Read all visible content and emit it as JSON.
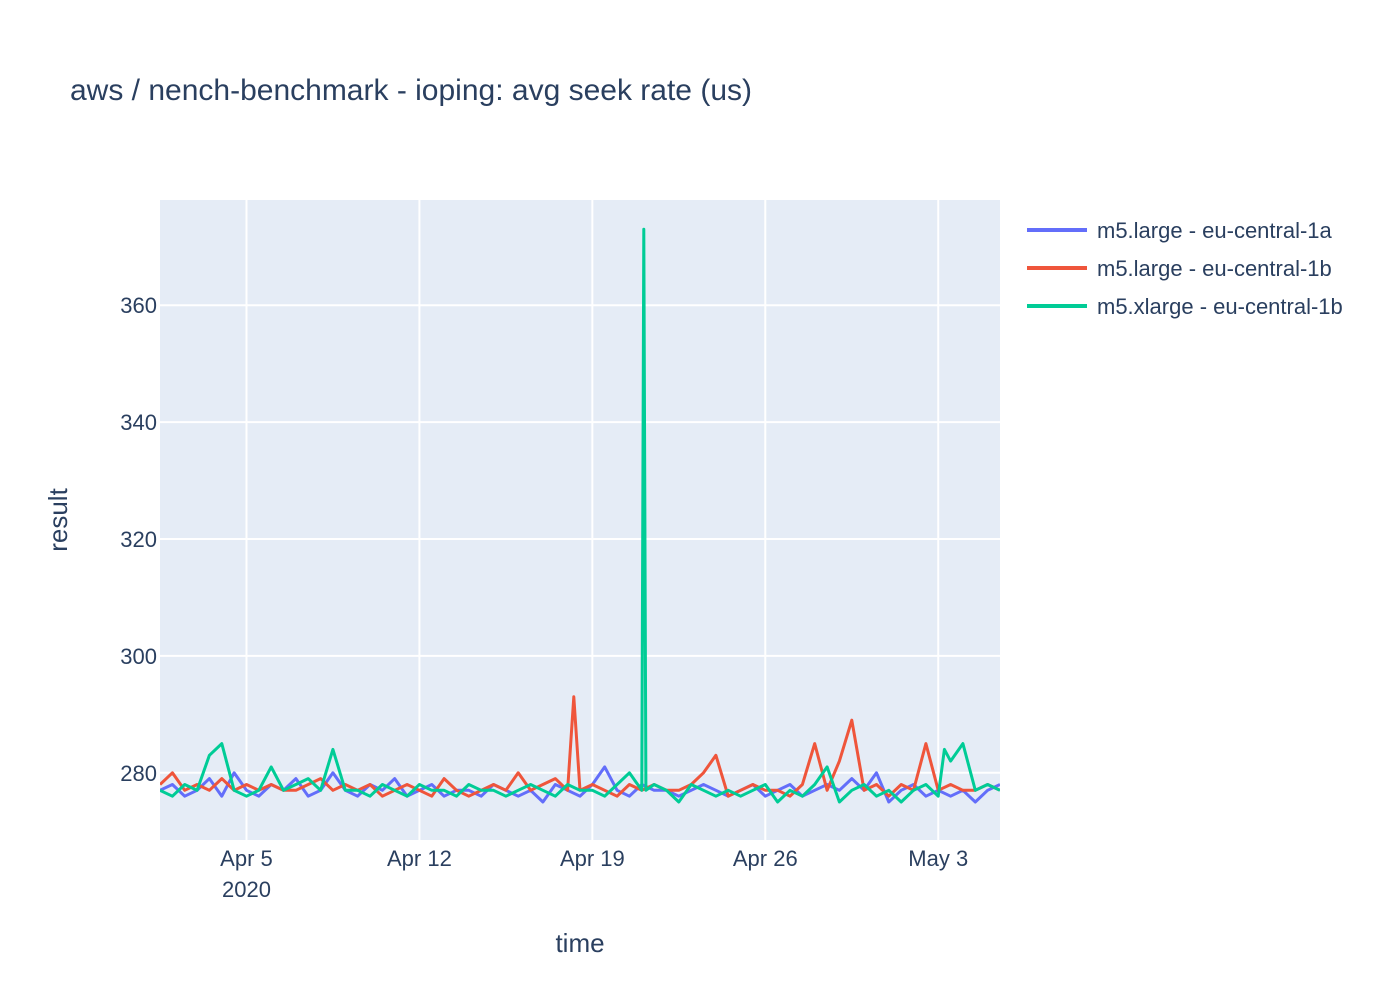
{
  "chart_data": {
    "type": "line",
    "title": "aws / nench-benchmark - ioping: avg seek rate (us)",
    "xlabel": "time",
    "ylabel": "result",
    "x_range": [
      "2020-04-01T12:00",
      "2020-05-05T12:00"
    ],
    "ylim": [
      268.5,
      378
    ],
    "y_ticks": [
      280,
      300,
      320,
      340,
      360
    ],
    "x_ticks": [
      {
        "date": "2020-04-05",
        "label": "Apr 5",
        "sublabel": "2020"
      },
      {
        "date": "2020-04-12",
        "label": "Apr 12",
        "sublabel": ""
      },
      {
        "date": "2020-04-19",
        "label": "Apr 19",
        "sublabel": ""
      },
      {
        "date": "2020-04-26",
        "label": "Apr 26",
        "sublabel": ""
      },
      {
        "date": "2020-05-03",
        "label": "May 3",
        "sublabel": ""
      }
    ],
    "grid": true,
    "legend_position": "top-right",
    "series": [
      {
        "name": "m5.large - eu-central-1a",
        "color": "#636efa",
        "x": [
          "2020-04-01T12:00",
          "2020-04-02T00:00",
          "2020-04-02T12:00",
          "2020-04-03T00:00",
          "2020-04-03T12:00",
          "2020-04-04T00:00",
          "2020-04-04T12:00",
          "2020-04-05T00:00",
          "2020-04-05T12:00",
          "2020-04-06T00:00",
          "2020-04-06T12:00",
          "2020-04-07T00:00",
          "2020-04-07T12:00",
          "2020-04-08T00:00",
          "2020-04-08T12:00",
          "2020-04-09T00:00",
          "2020-04-09T12:00",
          "2020-04-10T00:00",
          "2020-04-10T12:00",
          "2020-04-11T00:00",
          "2020-04-11T12:00",
          "2020-04-12T00:00",
          "2020-04-12T12:00",
          "2020-04-13T00:00",
          "2020-04-13T12:00",
          "2020-04-14T00:00",
          "2020-04-14T12:00",
          "2020-04-15T00:00",
          "2020-04-15T12:00",
          "2020-04-16T00:00",
          "2020-04-16T12:00",
          "2020-04-17T00:00",
          "2020-04-17T12:00",
          "2020-04-18T00:00",
          "2020-04-18T12:00",
          "2020-04-19T00:00",
          "2020-04-19T12:00",
          "2020-04-20T00:00",
          "2020-04-20T12:00",
          "2020-04-21T00:00",
          "2020-04-21T12:00",
          "2020-04-22T00:00",
          "2020-04-22T12:00",
          "2020-04-23T00:00",
          "2020-04-23T12:00",
          "2020-04-24T00:00",
          "2020-04-24T12:00",
          "2020-04-25T00:00",
          "2020-04-25T12:00",
          "2020-04-26T00:00",
          "2020-04-26T12:00",
          "2020-04-27T00:00",
          "2020-04-27T12:00",
          "2020-04-28T00:00",
          "2020-04-28T12:00",
          "2020-04-29T00:00",
          "2020-04-29T12:00",
          "2020-04-30T00:00",
          "2020-04-30T12:00",
          "2020-05-01T00:00",
          "2020-05-01T12:00",
          "2020-05-02T00:00",
          "2020-05-02T12:00",
          "2020-05-03T00:00",
          "2020-05-03T12:00",
          "2020-05-04T00:00",
          "2020-05-04T12:00",
          "2020-05-05T00:00",
          "2020-05-05T12:00"
        ],
        "values": [
          277,
          278,
          276,
          277,
          279,
          276,
          280,
          277,
          276,
          278,
          277,
          279,
          276,
          277,
          280,
          277,
          276,
          278,
          277,
          279,
          276,
          277,
          278,
          276,
          277,
          277,
          276,
          278,
          277,
          276,
          277,
          275,
          278,
          277,
          276,
          278,
          281,
          277,
          276,
          278,
          277,
          277,
          276,
          277,
          278,
          277,
          276,
          277,
          278,
          276,
          277,
          278,
          276,
          277,
          278,
          277,
          279,
          277,
          280,
          275,
          277,
          278,
          276,
          277,
          276,
          277,
          275,
          277,
          278
        ]
      },
      {
        "name": "m5.large - eu-central-1b",
        "color": "#ef553b",
        "x": [
          "2020-04-01T12:00",
          "2020-04-02T00:00",
          "2020-04-02T12:00",
          "2020-04-03T00:00",
          "2020-04-03T12:00",
          "2020-04-04T00:00",
          "2020-04-04T12:00",
          "2020-04-05T00:00",
          "2020-04-05T12:00",
          "2020-04-06T00:00",
          "2020-04-06T12:00",
          "2020-04-07T00:00",
          "2020-04-07T12:00",
          "2020-04-08T00:00",
          "2020-04-08T12:00",
          "2020-04-09T00:00",
          "2020-04-09T12:00",
          "2020-04-10T00:00",
          "2020-04-10T12:00",
          "2020-04-11T00:00",
          "2020-04-11T12:00",
          "2020-04-12T00:00",
          "2020-04-12T12:00",
          "2020-04-13T00:00",
          "2020-04-13T12:00",
          "2020-04-14T00:00",
          "2020-04-14T12:00",
          "2020-04-15T00:00",
          "2020-04-15T12:00",
          "2020-04-16T00:00",
          "2020-04-16T12:00",
          "2020-04-17T00:00",
          "2020-04-17T12:00",
          "2020-04-18T00:00",
          "2020-04-18T06:00",
          "2020-04-18T12:00",
          "2020-04-19T00:00",
          "2020-04-19T12:00",
          "2020-04-20T00:00",
          "2020-04-20T12:00",
          "2020-04-21T00:00",
          "2020-04-21T12:00",
          "2020-04-22T00:00",
          "2020-04-22T12:00",
          "2020-04-23T00:00",
          "2020-04-23T12:00",
          "2020-04-24T00:00",
          "2020-04-24T12:00",
          "2020-04-25T00:00",
          "2020-04-25T12:00",
          "2020-04-26T00:00",
          "2020-04-26T12:00",
          "2020-04-27T00:00",
          "2020-04-27T12:00",
          "2020-04-28T00:00",
          "2020-04-28T12:00",
          "2020-04-29T00:00",
          "2020-04-29T12:00",
          "2020-04-30T00:00",
          "2020-04-30T12:00",
          "2020-05-01T00:00",
          "2020-05-01T12:00",
          "2020-05-02T00:00",
          "2020-05-02T12:00",
          "2020-05-03T00:00",
          "2020-05-03T12:00",
          "2020-05-04T00:00",
          "2020-05-04T12:00",
          "2020-05-05T00:00",
          "2020-05-05T12:00"
        ],
        "values": [
          278,
          280,
          277,
          278,
          277,
          279,
          277,
          278,
          277,
          278,
          277,
          277,
          278,
          279,
          277,
          278,
          277,
          278,
          276,
          277,
          278,
          277,
          276,
          279,
          277,
          276,
          277,
          278,
          277,
          280,
          277,
          278,
          279,
          277,
          293,
          277,
          278,
          277,
          276,
          278,
          277,
          278,
          277,
          277,
          278,
          280,
          283,
          276,
          277,
          278,
          277,
          277,
          276,
          278,
          285,
          277,
          282,
          289,
          277,
          278,
          276,
          278,
          277,
          285,
          277,
          278,
          277,
          277,
          278,
          277
        ]
      },
      {
        "name": "m5.xlarge - eu-central-1b",
        "color": "#00cc96",
        "x": [
          "2020-04-01T12:00",
          "2020-04-02T00:00",
          "2020-04-02T12:00",
          "2020-04-03T00:00",
          "2020-04-03T12:00",
          "2020-04-04T00:00",
          "2020-04-04T12:00",
          "2020-04-05T00:00",
          "2020-04-05T12:00",
          "2020-04-06T00:00",
          "2020-04-06T12:00",
          "2020-04-07T00:00",
          "2020-04-07T12:00",
          "2020-04-08T00:00",
          "2020-04-08T12:00",
          "2020-04-09T00:00",
          "2020-04-09T12:00",
          "2020-04-10T00:00",
          "2020-04-10T12:00",
          "2020-04-11T00:00",
          "2020-04-11T12:00",
          "2020-04-12T00:00",
          "2020-04-12T12:00",
          "2020-04-13T00:00",
          "2020-04-13T12:00",
          "2020-04-14T00:00",
          "2020-04-14T12:00",
          "2020-04-15T00:00",
          "2020-04-15T12:00",
          "2020-04-16T00:00",
          "2020-04-16T12:00",
          "2020-04-17T00:00",
          "2020-04-17T12:00",
          "2020-04-18T00:00",
          "2020-04-18T12:00",
          "2020-04-19T00:00",
          "2020-04-19T12:00",
          "2020-04-20T00:00",
          "2020-04-20T12:00",
          "2020-04-21T00:00",
          "2020-04-21T02:00",
          "2020-04-21T04:00",
          "2020-04-21T12:00",
          "2020-04-22T00:00",
          "2020-04-22T12:00",
          "2020-04-23T00:00",
          "2020-04-23T12:00",
          "2020-04-24T00:00",
          "2020-04-24T12:00",
          "2020-04-25T00:00",
          "2020-04-25T12:00",
          "2020-04-26T00:00",
          "2020-04-26T12:00",
          "2020-04-27T00:00",
          "2020-04-27T12:00",
          "2020-04-28T00:00",
          "2020-04-28T12:00",
          "2020-04-29T00:00",
          "2020-04-29T12:00",
          "2020-04-30T00:00",
          "2020-04-30T12:00",
          "2020-05-01T00:00",
          "2020-05-01T12:00",
          "2020-05-02T00:00",
          "2020-05-02T12:00",
          "2020-05-03T00:00",
          "2020-05-03T06:00",
          "2020-05-03T12:00",
          "2020-05-04T00:00",
          "2020-05-04T12:00",
          "2020-05-05T00:00",
          "2020-05-05T12:00"
        ],
        "values": [
          277,
          276,
          278,
          277,
          283,
          285,
          277,
          276,
          277,
          281,
          277,
          278,
          279,
          277,
          284,
          277,
          277,
          276,
          278,
          277,
          276,
          278,
          277,
          277,
          276,
          278,
          277,
          277,
          276,
          277,
          278,
          277,
          276,
          278,
          277,
          277,
          276,
          278,
          280,
          277,
          373,
          277,
          278,
          277,
          275,
          278,
          277,
          276,
          277,
          276,
          277,
          278,
          275,
          277,
          276,
          278,
          281,
          275,
          277,
          278,
          276,
          277,
          275,
          277,
          278,
          276,
          284,
          282,
          285,
          277,
          278,
          277
        ]
      }
    ]
  }
}
